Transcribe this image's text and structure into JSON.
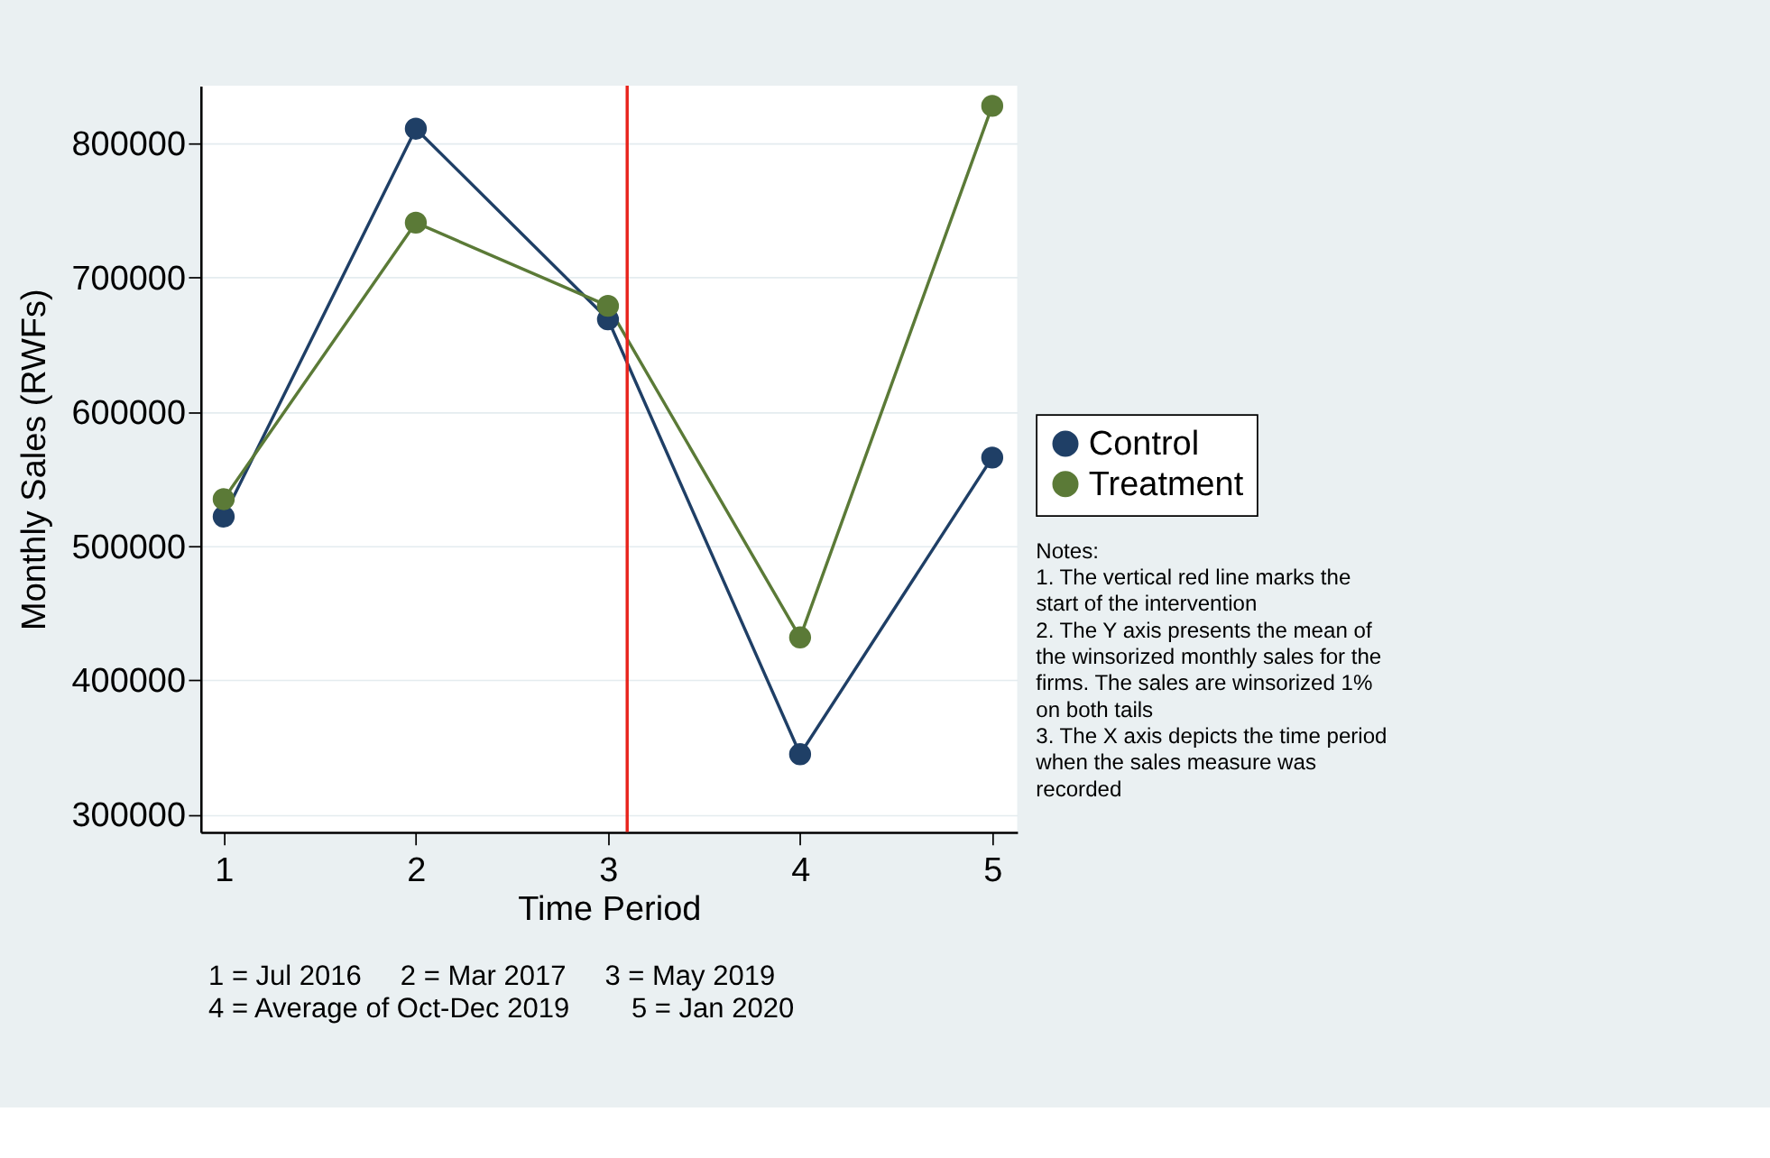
{
  "chart_data": {
    "type": "line",
    "xlabel": "Time Period",
    "ylabel": "Monthly Sales (RWFs)",
    "x": [
      1,
      2,
      3,
      4,
      5
    ],
    "series": [
      {
        "name": "Control",
        "color": "#1f3f66",
        "values": [
          522000,
          811000,
          669000,
          345000,
          566000
        ]
      },
      {
        "name": "Treatment",
        "color": "#5b7a37",
        "values": [
          535000,
          741000,
          679000,
          432000,
          828000
        ]
      }
    ],
    "xlim": [
      0.88,
      5.13
    ],
    "xticks": [
      1,
      2,
      3,
      4,
      5
    ],
    "ylim": [
      287000,
      843000
    ],
    "yticks": [
      300000,
      400000,
      500000,
      600000,
      700000,
      800000
    ],
    "ref_lines": [
      {
        "axis": "x",
        "value": 3.1,
        "color": "#e8241c"
      }
    ],
    "grid": "y",
    "legend": "right",
    "marker": "circle",
    "line_style": "solid",
    "annotations": [
      "Notes:\n1. The vertical red line marks the\nstart of the intervention\n2. The Y axis presents the mean of\nthe winsorized monthly sales for the\nfirms. The sales are winsorized 1%\non both tails\n3. The X axis depicts the time period\nwhen the sales measure was\nrecorded",
      "1 = Jul 2016     2 = Mar 2017     3 = May 2019\n4 = Average of Oct-Dec 2019        5 = Jan 2020"
    ]
  }
}
